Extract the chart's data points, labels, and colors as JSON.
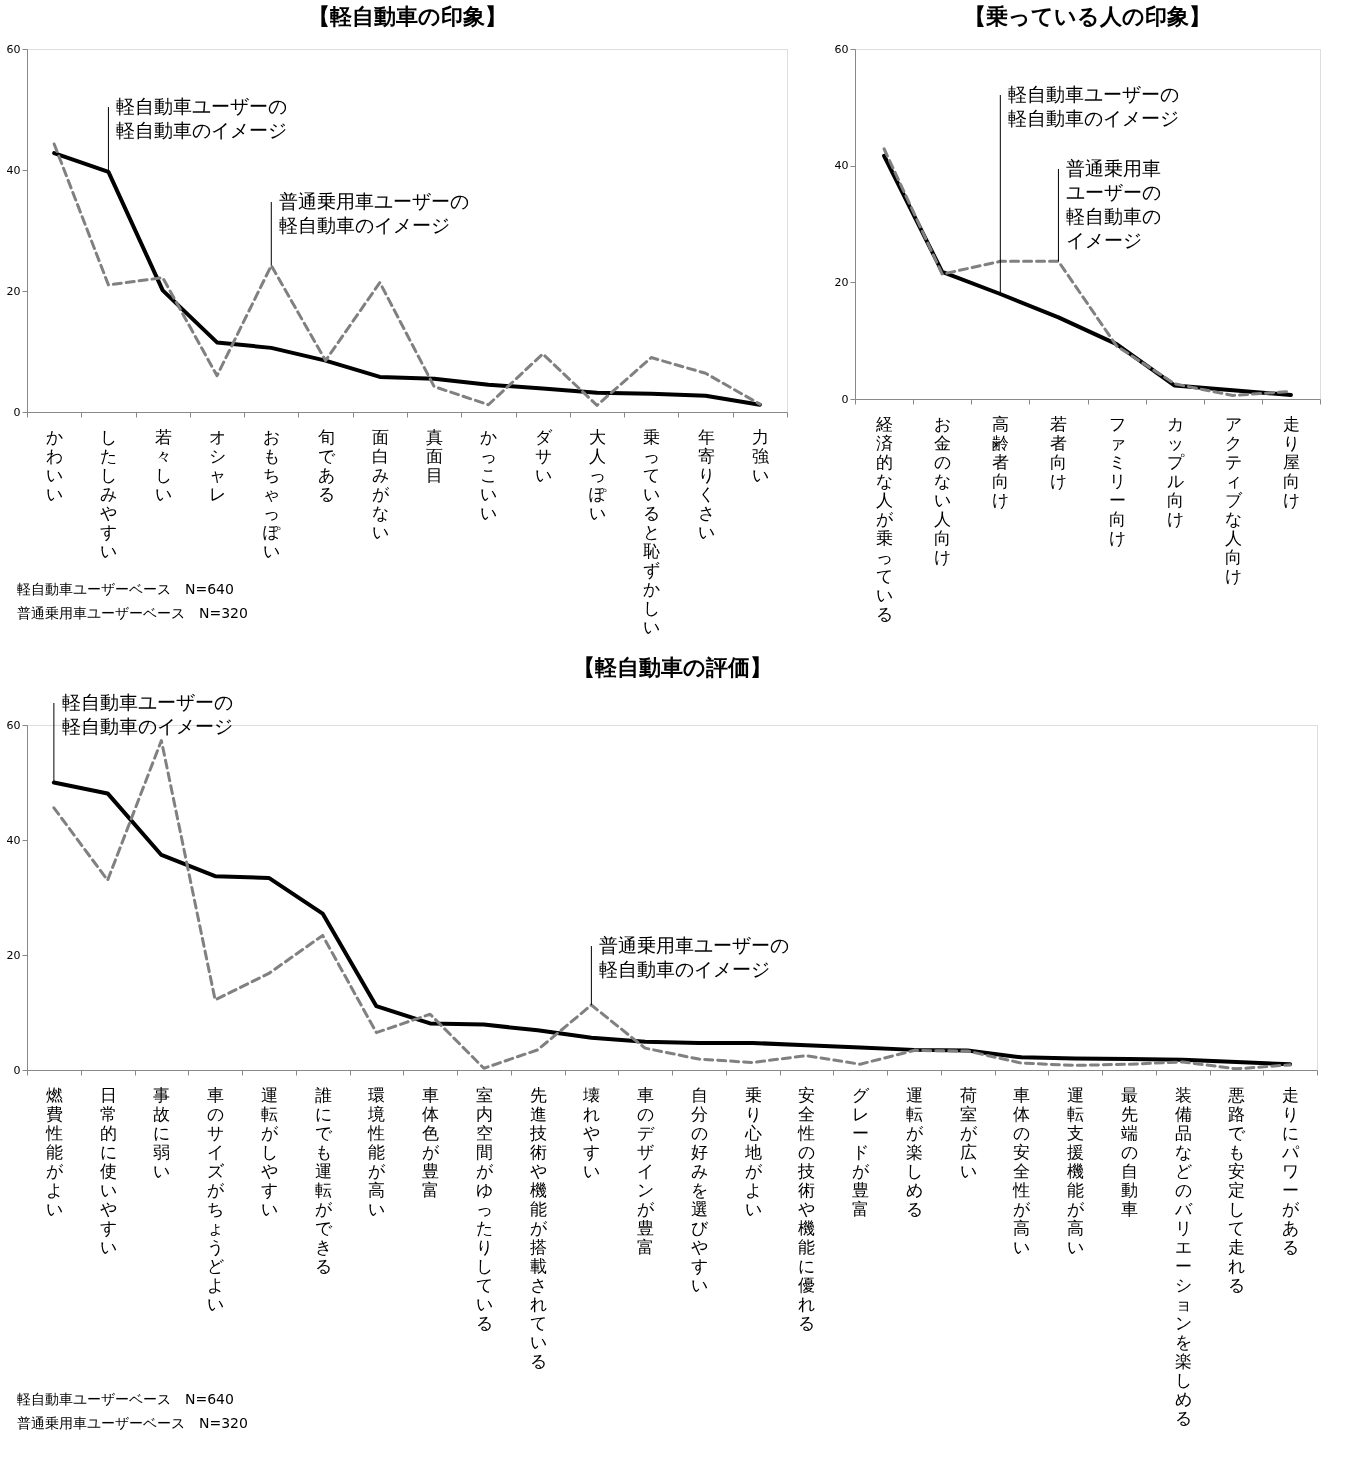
{
  "chart_data": [
    {
      "type": "line",
      "title": "【軽自動車の印象】",
      "categories": [
        "かわいい",
        "したしみやすい",
        "若々しい",
        "オシャレ",
        "おもちゃっぽい",
        "旬である",
        "面白みがない",
        "真面目",
        "かっこいい",
        "ダサい",
        "大人っぽい",
        "乗っていると恥ずかしい",
        "年寄りくさい",
        "力強い"
      ],
      "series": [
        {
          "color": "#000000",
          "line_style": "solid",
          "values": [
            42.8,
            39.7,
            20.1,
            11.5,
            10.6,
            8.5,
            5.8,
            5.5,
            4.5,
            3.9,
            3.2,
            3.0,
            2.7,
            1.2
          ]
        },
        {
          "color": "#808080",
          "line_style": "dashed",
          "values": [
            44.3,
            21.0,
            22.2,
            6.0,
            24.2,
            8.5,
            21.4,
            4.2,
            1.2,
            9.6,
            1.1,
            9.0,
            6.4,
            1.3
          ]
        }
      ],
      "ylim": [
        0,
        60
      ],
      "yticks": [
        0,
        20,
        40,
        60
      ],
      "annotations": [
        {
          "text": "軽自動車ユーザーの軽自動車のイメージ",
          "x": "したしみやすい",
          "y": 39.7
        },
        {
          "text": "普通乗用車ユーザーの軽自動車のイメージ",
          "x": "おもちゃっぽい",
          "y": 24.2
        },
        "軽自動車ユーザーベース　N=640",
        "普通乗用車ユーザーベース　N=320"
      ]
    },
    {
      "type": "line",
      "title": "【乗っている人の印象】",
      "categories": [
        "経済的な人が乗っている",
        "お金のない人向け",
        "高齢者向け",
        "若者向け",
        "ファミリー向け",
        "カップル向け",
        "アクティブな人向け",
        "走り屋向け"
      ],
      "series": [
        {
          "color": "#000000",
          "line_style": "solid",
          "values": [
            41.7,
            21.8,
            18.0,
            14.0,
            9.4,
            2.3,
            1.5,
            0.7
          ]
        },
        {
          "color": "#808080",
          "line_style": "dashed",
          "values": [
            42.9,
            21.4,
            23.6,
            23.6,
            9.1,
            2.6,
            0.6,
            1.3
          ]
        }
      ],
      "ylim": [
        0,
        60
      ],
      "yticks": [
        0,
        20,
        40,
        60
      ],
      "annotations": [
        {
          "text": "軽自動車ユーザーの軽自動車のイメージ",
          "x": "高齢者向け",
          "y": 18.0
        },
        {
          "text": "普通乗用車ユーザーの軽自動車のイメージ",
          "x": "若者向け",
          "y": 23.6
        }
      ]
    },
    {
      "type": "line",
      "title": "【軽自動車の評価】",
      "categories": [
        "燃費性能がよい",
        "日常的に使いやすい",
        "事故に弱い",
        "車のサイズがちょうどよい",
        "運転がしやすい",
        "誰にでも運転ができる",
        "環境性能が高い",
        "車体色が豊富",
        "室内空間がゆったりしている",
        "先進技術や機能が搭載されている",
        "壊れやすい",
        "車のデザインが豊富",
        "自分の好みを選びやすい",
        "乗り心地がよい",
        "安全性の技術や機能に優れる",
        "グレードが豊富",
        "運転が楽しめる",
        "荷室が広い",
        "車体の安全性が高い",
        "運転支援機能が高い",
        "最先端の自動車",
        "装備品などのバリエーションを楽しめる",
        "悪路でも安定して走れる",
        "走りにパワーがある"
      ],
      "series": [
        {
          "color": "#000000",
          "line_style": "solid",
          "values": [
            50.0,
            48.1,
            37.4,
            33.7,
            33.4,
            27.2,
            11.1,
            8.1,
            7.9,
            6.9,
            5.6,
            4.9,
            4.7,
            4.7,
            4.3,
            3.9,
            3.5,
            3.4,
            2.2,
            2.0,
            1.9,
            1.8,
            1.4,
            1.0
          ]
        },
        {
          "color": "#808080",
          "line_style": "dashed",
          "values": [
            45.6,
            33.0,
            57.3,
            12.2,
            16.8,
            23.4,
            6.5,
            9.7,
            0.3,
            3.5,
            11.3,
            3.8,
            1.9,
            1.3,
            2.5,
            1.0,
            3.4,
            3.3,
            1.2,
            0.8,
            1.0,
            1.4,
            0.2,
            0.9
          ]
        }
      ],
      "ylim": [
        0,
        60
      ],
      "yticks": [
        0,
        20,
        40,
        60
      ],
      "annotations": [
        {
          "text": "軽自動車ユーザーの軽自動車のイメージ",
          "x": "燃費性能がよい",
          "y": 50.0
        },
        {
          "text": "普通乗用車ユーザーの軽自動車のイメージ",
          "x": "壊れやすい",
          "y": 11.3
        },
        "軽自動車ユーザーベース　N=640",
        "普通乗用車ユーザーベース　N=320"
      ]
    }
  ]
}
